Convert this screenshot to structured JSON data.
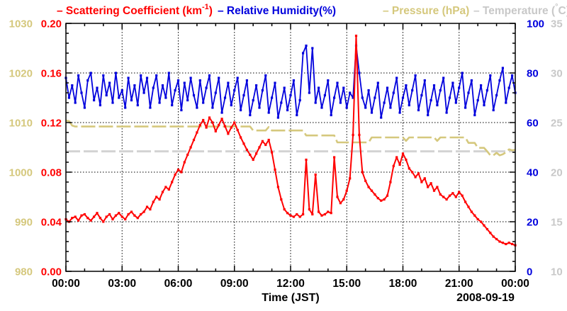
{
  "figure": {
    "background": "#ffffff"
  },
  "legend": {
    "items": [
      {
        "name": "scattering",
        "color": "#ff0000",
        "pre": "– Scattering Coefficient (km",
        "sup": "-1",
        "post": ")"
      },
      {
        "name": "humidity",
        "color": "#0000dd",
        "pre": "– Relative Humidity(%)",
        "sup": "",
        "post": ""
      },
      {
        "name": "pressure",
        "color": "#d5c87d",
        "pre": "– Pressure (hPa)",
        "sup": "",
        "post": ""
      },
      {
        "name": "temperature",
        "color": "#c8c8c8",
        "pre": "– Temperature (",
        "sup": "°",
        "post": "C)"
      }
    ]
  },
  "chart_data": {
    "type": "line",
    "title": "",
    "xlabel": "Time (JST)",
    "date_label": "2008-09-19",
    "x_axis": {
      "start_min": 0,
      "end_min": 1440,
      "step_min": 10,
      "tick_values": [
        0,
        180,
        360,
        540,
        720,
        900,
        1080,
        1260,
        1440
      ],
      "tick_labels": [
        "00:00",
        "03:00",
        "06:00",
        "09:00",
        "12:00",
        "15:00",
        "18:00",
        "21:00",
        "00:00"
      ],
      "minor_every_min": 60,
      "grid": "dotted"
    },
    "axes": {
      "scattering": {
        "title": "Scattering Coefficient (km-1)",
        "color": "#ff0000",
        "min": 0,
        "max": 0.2,
        "tick_values": [
          0.2,
          0.16,
          0.12,
          0.08,
          0.04,
          0.0
        ],
        "tick_labels": [
          "0.20",
          "0.16",
          "0.12",
          "0.08",
          "0.04",
          "0.00"
        ]
      },
      "pressure": {
        "title": "Pressure (hPa)",
        "color": "#d5c87d",
        "min": 980,
        "max": 1030,
        "tick_values": [
          1030,
          1020,
          1010,
          1000,
          990,
          980
        ],
        "tick_labels": [
          "1030",
          "1020",
          "1010",
          "1000",
          "990",
          "980"
        ]
      },
      "humidity": {
        "title": "Relative Humidity (%)",
        "color": "#0000dd",
        "min": 0,
        "max": 100,
        "tick_values": [
          100,
          80,
          60,
          40,
          20,
          0
        ],
        "tick_labels": [
          "100",
          "80",
          "60",
          "40",
          "20",
          "0"
        ]
      },
      "temperature": {
        "title": "Temperature (C)",
        "color": "#c8c8c8",
        "min": 10,
        "max": 35,
        "tick_values": [
          35,
          30,
          25,
          20,
          15,
          10
        ],
        "tick_labels": [
          "35",
          "30",
          "25",
          "20",
          "15",
          "10"
        ]
      }
    },
    "series": [
      {
        "name": "Temperature",
        "axis": "temperature",
        "color": "#d3d3d3",
        "style": "dashed",
        "width": 3,
        "constant": 22.1
      },
      {
        "name": "Pressure",
        "axis": "pressure",
        "color": "#d5c87d",
        "style": "dashed",
        "width": 2.6,
        "values": [
          1010.4,
          1010.3,
          1009.4,
          1009.2,
          1009.2,
          1009.2,
          1009.2,
          1009.2,
          1009.2,
          1009.2,
          1009.2,
          1009.2,
          1009.2,
          1009.2,
          1009.2,
          1009.2,
          1009.2,
          1009.2,
          1009.2,
          1009.2,
          1009.2,
          1009.2,
          1009.2,
          1009.2,
          1009.2,
          1009.2,
          1009.2,
          1009.2,
          1009.2,
          1009.2,
          1009.2,
          1009.2,
          1009.2,
          1009.2,
          1009.2,
          1009.2,
          1009.2,
          1009.2,
          1009.2,
          1009.2,
          1009.2,
          1009.2,
          1009.2,
          1009.2,
          1009.2,
          1009.2,
          1009.2,
          1009.2,
          1009.2,
          1009.2,
          1009.2,
          1009.2,
          1009.2,
          1009.2,
          1009.2,
          1009.2,
          1009.2,
          1009.2,
          1009.2,
          1009.2,
          1008.4,
          1008.4,
          1008.4,
          1008.4,
          1008.4,
          1009.1,
          1008.4,
          1008.4,
          1008.4,
          1008.4,
          1008.4,
          1008.4,
          1008.4,
          1008.4,
          1008.4,
          1008.4,
          1008.4,
          1007.4,
          1007.4,
          1007.4,
          1007.4,
          1007.4,
          1007.4,
          1007.4,
          1007.4,
          1007.4,
          1007.4,
          1006.0,
          1006.0,
          1006.0,
          1006.0,
          1006.0,
          1006.0,
          1006.0,
          1006.0,
          1006.0,
          1006.0,
          1006.0,
          1007.0,
          1007.0,
          1007.0,
          1007.0,
          1007.0,
          1007.0,
          1007.0,
          1007.0,
          1007.0,
          1007.0,
          1007.0,
          1006.3,
          1007.0,
          1007.0,
          1007.0,
          1007.0,
          1007.0,
          1007.0,
          1007.0,
          1007.0,
          1007.0,
          1006.3,
          1007.0,
          1007.0,
          1007.0,
          1007.0,
          1007.0,
          1007.0,
          1007.0,
          1007.0,
          1007.0,
          1005.9,
          1005.9,
          1005.9,
          1004.9,
          1004.9,
          1004.9,
          1004.2,
          1003.4,
          1003.4,
          1003.9,
          1003.4,
          1003.6,
          1004.0,
          1004.6,
          1004.4,
          1004.5
        ]
      },
      {
        "name": "Relative Humidity",
        "axis": "humidity",
        "color": "#0000dd",
        "style": "solid",
        "width": 1.8,
        "marker": true,
        "values": [
          78,
          70,
          75,
          68,
          79,
          72,
          66,
          77,
          80,
          69,
          74,
          67,
          79,
          71,
          76,
          68,
          80,
          70,
          73,
          66,
          78,
          69,
          75,
          67,
          79,
          72,
          78,
          66,
          74,
          79,
          68,
          75,
          70,
          80,
          67,
          73,
          77,
          65,
          76,
          69,
          78,
          71,
          66,
          77,
          68,
          74,
          79,
          66,
          72,
          78,
          64,
          70,
          76,
          67,
          73,
          78,
          65,
          71,
          77,
          63,
          69,
          75,
          66,
          73,
          79,
          64,
          70,
          76,
          62,
          68,
          74,
          65,
          71,
          77,
          63,
          69,
          88,
          91,
          72,
          90,
          68,
          74,
          66,
          71,
          77,
          63,
          70,
          76,
          68,
          74,
          66,
          72,
          70,
          91,
          80,
          70,
          66,
          73,
          64,
          70,
          76,
          62,
          68,
          74,
          66,
          72,
          78,
          64,
          70,
          75,
          67,
          73,
          79,
          65,
          71,
          77,
          63,
          69,
          75,
          67,
          73,
          78,
          64,
          70,
          76,
          68,
          74,
          80,
          66,
          72,
          77,
          63,
          69,
          75,
          67,
          73,
          79,
          65,
          71,
          77,
          82,
          68,
          74,
          79,
          72
        ]
      },
      {
        "name": "Scattering Coefficient",
        "axis": "scattering",
        "color": "#ff0000",
        "style": "solid",
        "width": 2,
        "marker": true,
        "values": [
          0.042,
          0.04,
          0.043,
          0.044,
          0.041,
          0.045,
          0.046,
          0.043,
          0.041,
          0.044,
          0.047,
          0.043,
          0.04,
          0.044,
          0.046,
          0.042,
          0.045,
          0.047,
          0.044,
          0.042,
          0.046,
          0.048,
          0.045,
          0.043,
          0.046,
          0.048,
          0.052,
          0.05,
          0.056,
          0.06,
          0.058,
          0.064,
          0.068,
          0.066,
          0.072,
          0.078,
          0.082,
          0.08,
          0.088,
          0.094,
          0.1,
          0.106,
          0.112,
          0.118,
          0.122,
          0.116,
          0.124,
          0.12,
          0.113,
          0.118,
          0.123,
          0.117,
          0.111,
          0.116,
          0.12,
          0.114,
          0.108,
          0.103,
          0.098,
          0.094,
          0.09,
          0.095,
          0.1,
          0.105,
          0.102,
          0.106,
          0.096,
          0.082,
          0.068,
          0.058,
          0.05,
          0.047,
          0.045,
          0.044,
          0.046,
          0.044,
          0.046,
          0.09,
          0.05,
          0.046,
          0.078,
          0.048,
          0.045,
          0.046,
          0.048,
          0.047,
          0.092,
          0.06,
          0.055,
          0.058,
          0.065,
          0.075,
          0.11,
          0.19,
          0.11,
          0.08,
          0.073,
          0.068,
          0.065,
          0.062,
          0.059,
          0.057,
          0.058,
          0.061,
          0.072,
          0.085,
          0.092,
          0.086,
          0.095,
          0.09,
          0.083,
          0.08,
          0.076,
          0.079,
          0.072,
          0.075,
          0.068,
          0.071,
          0.065,
          0.068,
          0.062,
          0.06,
          0.058,
          0.061,
          0.063,
          0.06,
          0.064,
          0.061,
          0.056,
          0.052,
          0.048,
          0.045,
          0.042,
          0.04,
          0.037,
          0.034,
          0.031,
          0.028,
          0.026,
          0.024,
          0.023,
          0.022,
          0.023,
          0.022,
          0.021
        ]
      }
    ],
    "grid": true,
    "legend_position": "top"
  }
}
